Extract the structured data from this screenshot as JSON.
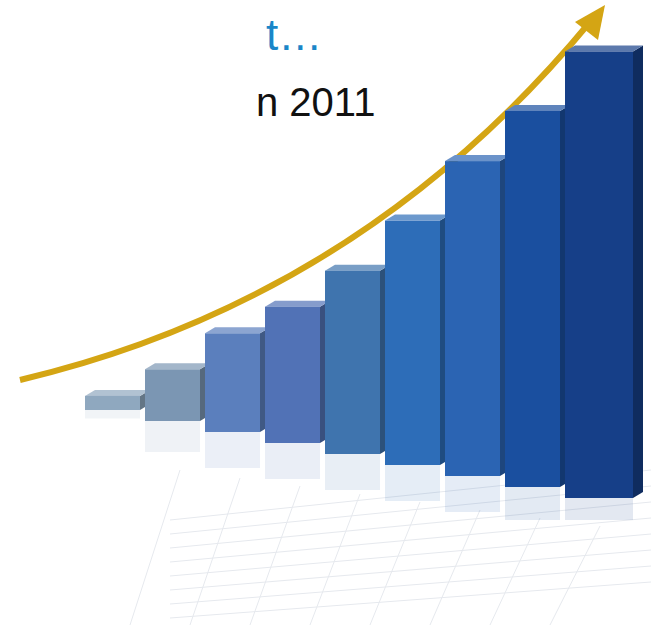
{
  "chart_data": {
    "type": "bar",
    "title": "t…",
    "subtitle": "n 2011",
    "categories": [
      null,
      null,
      null,
      null,
      null,
      null,
      null,
      null,
      null
    ],
    "values": [
      3,
      11,
      21,
      29,
      39,
      52,
      67,
      80,
      95
    ],
    "colors": [
      "#8fa8bf",
      "#7b96b3",
      "#5b7fbd",
      "#5172b6",
      "#3f74ae",
      "#2d6db8",
      "#2b64b3",
      "#1a4f9f",
      "#163f88"
    ],
    "ylim": [
      0,
      100
    ],
    "tick_labels": false
  }
}
